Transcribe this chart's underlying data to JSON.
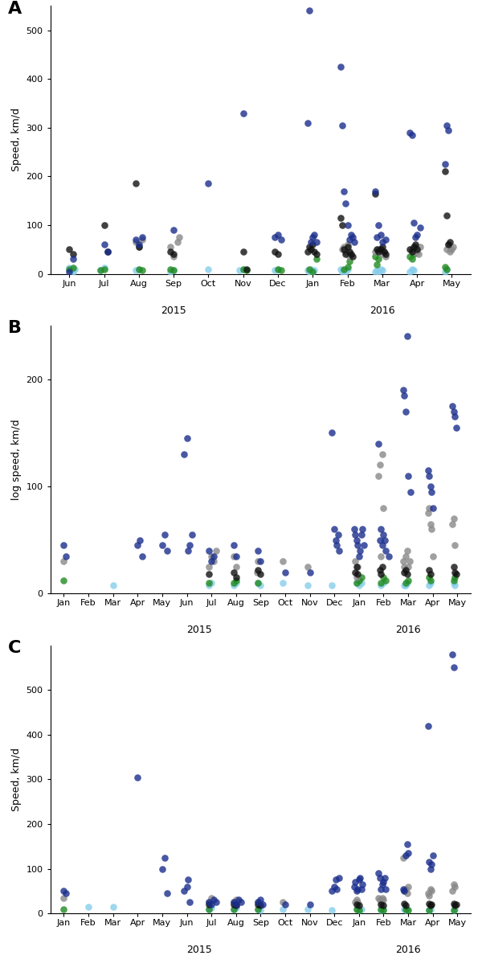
{
  "panel_A": {
    "label": "A",
    "ylabel": "Speed, km/d",
    "x_months": [
      "Jun",
      "Jul",
      "Aug",
      "Sep",
      "Oct",
      "Nov",
      "Dec",
      "Jan",
      "Feb",
      "Mar",
      "Apr",
      "May"
    ],
    "year_ticks": [
      [
        0,
        6,
        "2015"
      ],
      [
        7,
        11,
        "2016"
      ]
    ],
    "ylim": [
      0,
      550
    ],
    "yticks": [
      0,
      100,
      200,
      300,
      400,
      500
    ],
    "data": {
      "central_western": {
        "color": "#888888",
        "x": [
          1.9,
          2.0,
          2.1,
          2.9,
          3.0,
          3.1,
          3.15,
          7.85,
          7.9,
          7.95,
          8.0,
          8.05,
          8.8,
          8.9,
          9.0,
          9.05,
          9.1,
          9.85,
          9.9,
          9.95,
          10.0,
          10.05,
          10.1,
          10.85,
          10.9,
          10.95,
          11.0,
          11.05
        ],
        "y": [
          65,
          55,
          70,
          55,
          35,
          65,
          75,
          50,
          55,
          45,
          60,
          35,
          45,
          50,
          40,
          45,
          35,
          50,
          45,
          55,
          45,
          40,
          55,
          50,
          60,
          45,
          50,
          55
        ]
      },
      "northern": {
        "color": "#228B22",
        "x": [
          0.0,
          0.1,
          0.9,
          1.0,
          2.0,
          2.1,
          2.9,
          3.0,
          5.0,
          5.1,
          6.0,
          6.1,
          6.9,
          7.0,
          7.1,
          7.9,
          8.0,
          8.05,
          8.8,
          8.85,
          8.9,
          9.8,
          9.85,
          9.9,
          10.8,
          10.85,
          11.8,
          11.85
        ],
        "y": [
          10,
          12,
          8,
          10,
          10,
          8,
          10,
          8,
          10,
          8,
          10,
          8,
          10,
          5,
          30,
          10,
          15,
          25,
          35,
          20,
          30,
          35,
          30,
          40,
          15,
          10,
          10,
          20
        ]
      },
      "northeastern": {
        "color": "#87CEEB",
        "x": [
          0.0,
          0.05,
          0.1,
          0.15,
          0.9,
          1.0,
          1.9,
          2.0,
          2.9,
          3.0,
          4.0,
          4.9,
          5.0,
          5.9,
          6.0,
          6.85,
          6.9,
          6.95,
          7.0,
          7.05,
          7.8,
          7.85,
          7.9,
          7.95,
          8.0,
          8.8,
          8.85,
          8.9,
          8.95,
          9.0,
          9.8,
          9.85,
          9.9,
          10.8,
          10.85,
          11.8,
          11.85
        ],
        "y": [
          12,
          8,
          5,
          10,
          8,
          12,
          8,
          10,
          5,
          8,
          10,
          8,
          10,
          8,
          10,
          8,
          5,
          10,
          5,
          8,
          10,
          5,
          8,
          5,
          10,
          5,
          8,
          5,
          10,
          8,
          5,
          10,
          8,
          5,
          10,
          5,
          8
        ]
      },
      "southern": {
        "color": "#111111",
        "x": [
          0.0,
          0.1,
          1.0,
          1.1,
          1.9,
          2.0,
          2.9,
          3.0,
          5.0,
          5.1,
          5.9,
          6.0,
          6.85,
          6.9,
          6.95,
          7.0,
          7.05,
          7.1,
          7.8,
          7.85,
          7.9,
          7.95,
          8.0,
          8.05,
          8.1,
          8.15,
          8.8,
          8.85,
          8.9,
          8.95,
          9.0,
          9.05,
          9.1,
          9.8,
          9.85,
          9.9,
          9.95,
          10.0,
          10.8,
          10.85,
          10.9,
          10.95
        ],
        "y": [
          50,
          40,
          100,
          45,
          185,
          55,
          45,
          40,
          45,
          10,
          45,
          40,
          45,
          55,
          50,
          60,
          45,
          40,
          115,
          100,
          50,
          40,
          55,
          45,
          40,
          35,
          165,
          50,
          45,
          50,
          55,
          45,
          40,
          50,
          45,
          55,
          60,
          50,
          210,
          120,
          60,
          65
        ]
      },
      "southeastern": {
        "color": "#1A2E8C",
        "x": [
          0.0,
          0.1,
          1.0,
          1.1,
          1.9,
          2.0,
          2.1,
          3.0,
          4.0,
          5.0,
          5.9,
          6.0,
          6.1,
          6.85,
          6.9,
          6.95,
          7.0,
          7.05,
          7.1,
          7.8,
          7.85,
          7.9,
          7.95,
          8.0,
          8.05,
          8.1,
          8.15,
          8.2,
          8.8,
          8.85,
          8.9,
          8.95,
          9.0,
          9.1,
          9.8,
          9.85,
          9.9,
          9.95,
          10.0,
          10.1,
          10.8,
          10.85,
          10.9
        ],
        "y": [
          5,
          30,
          60,
          45,
          70,
          60,
          75,
          90,
          185,
          330,
          75,
          80,
          70,
          310,
          540,
          65,
          75,
          80,
          65,
          425,
          305,
          170,
          145,
          100,
          70,
          80,
          75,
          65,
          170,
          75,
          100,
          80,
          65,
          70,
          290,
          285,
          105,
          75,
          80,
          95,
          225,
          305,
          295
        ]
      }
    }
  },
  "panel_B": {
    "label": "B",
    "ylabel": "log speed, km/d",
    "x_months": [
      "Jan",
      "Feb",
      "Mar",
      "Apr",
      "May",
      "Jun",
      "Jul",
      "Aug",
      "Sep",
      "Oct",
      "Nov",
      "Dec",
      "Jan",
      "Feb",
      "Mar",
      "Apr",
      "May"
    ],
    "year_ticks": [
      [
        0,
        11,
        "2015"
      ],
      [
        12,
        16,
        "2016"
      ]
    ],
    "ylim": [
      0,
      250
    ],
    "yticks": [
      0,
      100,
      200
    ],
    "data": {
      "central_western": {
        "color": "#888888",
        "x": [
          0.0,
          5.9,
          6.0,
          6.1,
          6.2,
          6.9,
          7.0,
          7.85,
          7.9,
          8.9,
          9.9,
          11.85,
          11.9,
          11.95,
          12.8,
          12.85,
          12.9,
          12.95,
          13.0,
          13.8,
          13.85,
          13.9,
          13.95,
          14.0,
          14.05,
          14.8,
          14.85,
          14.9,
          14.95,
          15.0,
          15.8,
          15.85,
          15.9,
          16.8,
          16.85
        ],
        "y": [
          30,
          25,
          35,
          30,
          40,
          35,
          25,
          20,
          30,
          30,
          25,
          30,
          15,
          25,
          110,
          120,
          35,
          130,
          80,
          30,
          25,
          35,
          40,
          25,
          30,
          75,
          80,
          65,
          60,
          35,
          65,
          70,
          45,
          45,
          75
        ]
      },
      "northern": {
        "color": "#228B22",
        "x": [
          0.0,
          5.9,
          6.9,
          7.0,
          7.9,
          11.9,
          12.0,
          12.1,
          12.9,
          13.0,
          13.1,
          13.9,
          14.0,
          14.85,
          14.9,
          15.85,
          15.9,
          16.85
        ],
        "y": [
          12,
          10,
          10,
          12,
          10,
          10,
          12,
          15,
          10,
          15,
          12,
          10,
          12,
          15,
          12,
          12,
          15,
          10
        ]
      },
      "northeastern": {
        "color": "#87CEEB",
        "x": [
          2.0,
          5.9,
          6.0,
          6.9,
          7.0,
          7.9,
          8.0,
          8.9,
          9.9,
          10.9,
          11.9,
          12.0,
          12.1,
          12.9,
          13.0,
          13.85,
          13.9,
          13.95,
          14.85,
          14.9,
          15.85,
          15.9,
          16.85
        ],
        "y": [
          8,
          8,
          10,
          8,
          10,
          10,
          8,
          10,
          8,
          8,
          10,
          8,
          10,
          8,
          10,
          8,
          8,
          10,
          8,
          10,
          10,
          8,
          8
        ]
      },
      "southern": {
        "color": "#111111",
        "x": [
          5.9,
          6.9,
          7.0,
          7.9,
          8.0,
          11.85,
          11.9,
          11.95,
          12.85,
          12.9,
          12.95,
          13.85,
          13.9,
          13.95,
          14.85,
          14.9,
          15.85,
          15.9,
          15.95,
          16.85
        ],
        "y": [
          18,
          20,
          15,
          22,
          18,
          20,
          25,
          18,
          22,
          18,
          25,
          20,
          22,
          18,
          22,
          18,
          25,
          20,
          18,
          20
        ]
      },
      "southeastern": {
        "color": "#1A2E8C",
        "x": [
          0.0,
          0.1,
          3.0,
          3.1,
          3.2,
          4.0,
          4.1,
          4.2,
          4.9,
          5.0,
          5.05,
          5.1,
          5.2,
          5.9,
          6.0,
          6.1,
          6.9,
          7.0,
          7.9,
          8.0,
          9.0,
          10.0,
          10.9,
          11.0,
          11.05,
          11.1,
          11.15,
          11.2,
          11.8,
          11.85,
          11.9,
          11.95,
          12.0,
          12.05,
          12.1,
          12.15,
          12.2,
          12.8,
          12.85,
          12.9,
          12.95,
          13.0,
          13.05,
          13.1,
          13.2,
          13.8,
          13.85,
          13.9,
          13.95,
          14.0,
          14.1,
          14.8,
          14.85,
          14.9,
          14.95,
          15.0,
          15.8,
          15.85,
          15.9,
          15.95
        ],
        "y": [
          45,
          35,
          45,
          50,
          35,
          45,
          55,
          40,
          130,
          145,
          40,
          45,
          55,
          40,
          30,
          35,
          45,
          35,
          40,
          30,
          20,
          20,
          150,
          60,
          50,
          45,
          55,
          40,
          60,
          55,
          50,
          45,
          35,
          40,
          55,
          60,
          45,
          140,
          50,
          60,
          45,
          55,
          50,
          40,
          35,
          190,
          185,
          170,
          240,
          110,
          95,
          115,
          110,
          100,
          95,
          80,
          175,
          170,
          165,
          155
        ]
      }
    }
  },
  "panel_C": {
    "label": "C",
    "ylabel": "Speed, km/d",
    "x_months": [
      "Jan",
      "Feb",
      "Mar",
      "Apr",
      "May",
      "Jun",
      "Jul",
      "Aug",
      "Sep",
      "Oct",
      "Nov",
      "Dec",
      "Jan",
      "Feb",
      "Mar",
      "Apr",
      "May"
    ],
    "year_ticks": [
      [
        0,
        11,
        "2015"
      ],
      [
        12,
        16,
        "2016"
      ]
    ],
    "ylim": [
      0,
      600
    ],
    "yticks": [
      0,
      100,
      200,
      300,
      400,
      500
    ],
    "data": {
      "central_western": {
        "color": "#888888",
        "x": [
          0.0,
          5.9,
          6.0,
          6.9,
          7.0,
          7.9,
          8.9,
          11.85,
          11.9,
          11.95,
          12.8,
          12.85,
          12.9,
          12.95,
          13.0,
          13.8,
          13.85,
          13.9,
          13.95,
          14.0,
          14.8,
          14.85,
          14.9,
          14.95,
          15.8,
          15.85,
          15.9,
          16.8,
          16.85
        ],
        "y": [
          35,
          25,
          35,
          25,
          30,
          25,
          25,
          25,
          30,
          25,
          35,
          30,
          25,
          35,
          30,
          125,
          50,
          55,
          45,
          60,
          45,
          40,
          55,
          50,
          50,
          65,
          60,
          50,
          60
        ]
      },
      "northern": {
        "color": "#228B22",
        "x": [
          0.0,
          5.9,
          6.9,
          7.9,
          11.9,
          12.0,
          12.9,
          13.0,
          13.9,
          14.0,
          14.85,
          15.85,
          16.85
        ],
        "y": [
          10,
          10,
          10,
          10,
          10,
          8,
          10,
          8,
          10,
          8,
          8,
          8,
          8
        ]
      },
      "northeastern": {
        "color": "#87CEEB",
        "x": [
          1.0,
          2.0,
          5.9,
          6.0,
          6.9,
          7.0,
          7.9,
          8.0,
          8.9,
          9.9,
          10.9,
          11.9,
          12.0,
          12.1,
          12.9,
          13.0,
          13.85,
          13.9,
          13.95,
          14.85,
          14.9,
          15.85,
          15.9,
          16.85
        ],
        "y": [
          15,
          15,
          10,
          12,
          10,
          12,
          10,
          8,
          10,
          10,
          8,
          10,
          8,
          10,
          8,
          10,
          10,
          8,
          10,
          8,
          10,
          8,
          10,
          8
        ]
      },
      "southern": {
        "color": "#111111",
        "x": [
          5.9,
          6.9,
          7.0,
          7.9,
          8.0,
          11.9,
          12.0,
          12.9,
          13.0,
          13.85,
          13.9,
          14.85,
          14.9,
          14.95,
          15.85,
          15.9,
          15.95,
          16.85,
          16.9
        ],
        "y": [
          20,
          20,
          18,
          20,
          18,
          20,
          18,
          20,
          18,
          22,
          18,
          22,
          18,
          20,
          22,
          18,
          20,
          25,
          20
        ]
      },
      "southeastern": {
        "color": "#1A2E8C",
        "x": [
          0.0,
          0.1,
          3.0,
          4.0,
          4.1,
          4.2,
          4.9,
          5.0,
          5.05,
          5.1,
          5.9,
          6.0,
          6.1,
          6.2,
          6.9,
          7.0,
          7.1,
          7.2,
          7.9,
          8.0,
          8.1,
          9.0,
          10.0,
          10.9,
          11.0,
          11.05,
          11.1,
          11.2,
          11.8,
          11.85,
          11.9,
          11.95,
          12.0,
          12.05,
          12.1,
          12.15,
          12.8,
          12.85,
          12.9,
          12.95,
          13.0,
          13.05,
          13.1,
          13.8,
          13.85,
          13.9,
          13.95,
          14.0,
          14.8,
          14.85,
          14.9,
          14.95,
          15.0,
          15.8,
          15.85
        ],
        "y": [
          50,
          45,
          305,
          100,
          125,
          45,
          50,
          60,
          75,
          25,
          25,
          20,
          30,
          25,
          25,
          20,
          30,
          25,
          25,
          30,
          20,
          20,
          20,
          50,
          60,
          75,
          55,
          80,
          60,
          70,
          50,
          55,
          75,
          80,
          55,
          65,
          90,
          80,
          55,
          65,
          70,
          80,
          55,
          55,
          50,
          130,
          155,
          135,
          420,
          115,
          100,
          110,
          130,
          580,
          550
        ]
      }
    }
  },
  "marker_size": 38,
  "alpha": 0.8,
  "background_color": "#ffffff"
}
